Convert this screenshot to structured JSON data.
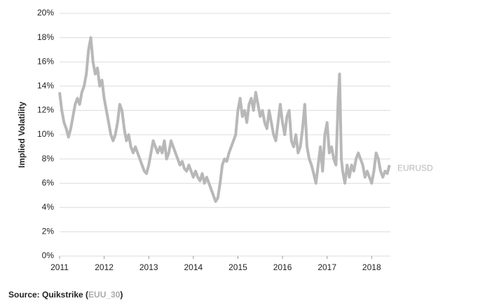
{
  "chart_data": {
    "type": "line",
    "y_label": "Implied Volatility",
    "source": [
      "Source: Quikstrike (",
      "EUU_30",
      ")"
    ],
    "x": [
      2011.0,
      2011.05,
      2011.1,
      2011.15,
      2011.2,
      2011.25,
      2011.3,
      2011.35,
      2011.4,
      2011.45,
      2011.5,
      2011.55,
      2011.6,
      2011.65,
      2011.7,
      2011.75,
      2011.8,
      2011.85,
      2011.9,
      2011.95,
      2012.0,
      2012.05,
      2012.1,
      2012.15,
      2012.2,
      2012.25,
      2012.3,
      2012.35,
      2012.4,
      2012.45,
      2012.5,
      2012.55,
      2012.6,
      2012.65,
      2012.7,
      2012.75,
      2012.8,
      2012.85,
      2012.9,
      2012.95,
      2013.0,
      2013.05,
      2013.1,
      2013.15,
      2013.2,
      2013.25,
      2013.3,
      2013.35,
      2013.4,
      2013.45,
      2013.5,
      2013.55,
      2013.6,
      2013.65,
      2013.7,
      2013.75,
      2013.8,
      2013.85,
      2013.9,
      2013.95,
      2014.0,
      2014.05,
      2014.1,
      2014.15,
      2014.2,
      2014.25,
      2014.3,
      2014.35,
      2014.4,
      2014.45,
      2014.5,
      2014.55,
      2014.6,
      2014.65,
      2014.7,
      2014.75,
      2014.8,
      2014.85,
      2014.9,
      2014.95,
      2015.0,
      2015.05,
      2015.1,
      2015.15,
      2015.2,
      2015.25,
      2015.3,
      2015.35,
      2015.4,
      2015.45,
      2015.5,
      2015.55,
      2015.6,
      2015.65,
      2015.7,
      2015.75,
      2015.8,
      2015.85,
      2015.9,
      2015.95,
      2016.0,
      2016.05,
      2016.1,
      2016.15,
      2016.2,
      2016.25,
      2016.3,
      2016.35,
      2016.4,
      2016.45,
      2016.5,
      2016.55,
      2016.6,
      2016.65,
      2016.7,
      2016.75,
      2016.8,
      2016.85,
      2016.9,
      2016.95,
      2017.0,
      2017.05,
      2017.1,
      2017.15,
      2017.2,
      2017.25,
      2017.28,
      2017.32,
      2017.35,
      2017.4,
      2017.45,
      2017.5,
      2017.55,
      2017.6,
      2017.65,
      2017.7,
      2017.75,
      2017.8,
      2017.85,
      2017.9,
      2017.95,
      2018.0,
      2018.05,
      2018.1,
      2018.15,
      2018.2,
      2018.25,
      2018.3,
      2018.35,
      2018.4
    ],
    "series": [
      {
        "name": "EURUSD",
        "color": "#b8b8b8",
        "values": [
          13.5,
          12,
          11,
          10.5,
          9.8,
          10.5,
          11.5,
          12.5,
          13,
          12.5,
          13.5,
          14,
          15,
          17,
          18,
          16,
          15,
          15.5,
          14,
          14.5,
          13,
          12,
          11,
          10,
          9.5,
          10,
          11,
          12.5,
          12,
          10.5,
          9.5,
          10,
          9,
          8.5,
          9,
          8.5,
          8,
          7.5,
          7,
          6.8,
          7.5,
          8.5,
          9.5,
          9,
          8.5,
          9,
          8.5,
          9.5,
          8,
          8.5,
          9.5,
          9,
          8.5,
          8,
          7.5,
          7.8,
          7.2,
          7,
          7.5,
          7,
          6.5,
          7,
          6.5,
          6.2,
          6.8,
          6,
          6.5,
          6,
          5.5,
          5,
          4.5,
          4.8,
          6,
          7.5,
          8,
          7.8,
          8.5,
          9,
          9.5,
          10,
          12,
          13,
          11.5,
          12,
          11,
          12.5,
          13,
          12,
          13.5,
          12.5,
          11.5,
          12,
          11,
          10.5,
          12,
          11,
          10,
          9.5,
          11,
          12.5,
          11,
          10,
          11.5,
          12,
          9.5,
          9,
          10,
          8.5,
          9,
          10.5,
          12.5,
          9,
          8,
          7.5,
          6.8,
          6,
          7.5,
          9,
          7,
          10,
          11,
          8.5,
          9,
          8,
          7.5,
          13,
          15,
          8,
          7,
          6,
          7.5,
          6.5,
          7.5,
          7,
          8,
          8.5,
          8,
          7.5,
          6.5,
          7,
          6.5,
          6,
          7,
          8.5,
          8,
          7,
          6.5,
          7,
          6.8,
          7.5
        ]
      }
    ],
    "xlim": [
      2011,
      2018.42
    ],
    "xticks": [
      2011,
      2012,
      2013,
      2014,
      2015,
      2016,
      2017,
      2018
    ],
    "ylim": [
      0,
      20
    ],
    "yticks": [
      {
        "value": 0,
        "label": "0%"
      },
      {
        "value": 2,
        "label": "2%"
      },
      {
        "value": 4,
        "label": "4%"
      },
      {
        "value": 6,
        "label": "6%"
      },
      {
        "value": 8,
        "label": "8%"
      },
      {
        "value": 10,
        "label": "10%"
      },
      {
        "value": 12,
        "label": "12%"
      },
      {
        "value": 14,
        "label": "14%"
      },
      {
        "value": 16,
        "label": "16%"
      },
      {
        "value": 18,
        "label": "18%"
      },
      {
        "value": 20,
        "label": "20%"
      }
    ],
    "grid": true
  }
}
